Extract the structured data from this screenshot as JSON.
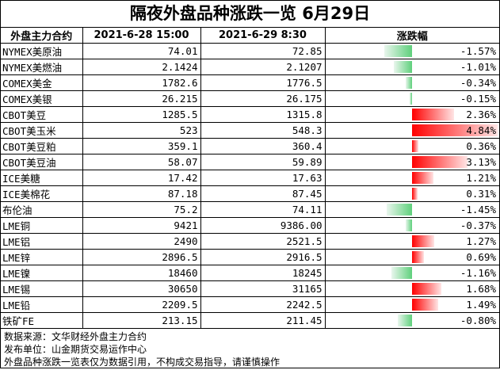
{
  "title": "隔夜外盘品种涨跌一览 6月29日",
  "headers": {
    "name": "外盘主力合约",
    "col1": "2021-6-28 15:00",
    "col2": "2021-6-29 8:30",
    "change": "涨跌幅"
  },
  "colors": {
    "up": "#ff0000",
    "down": "#5fd07c"
  },
  "rows": [
    {
      "name": "NYMEX美原油",
      "v1": "74.01",
      "v2": "72.85",
      "pct": "-1.57%",
      "val": -1.57
    },
    {
      "name": "NYMEX美燃油",
      "v1": "2.1424",
      "v2": "2.1207",
      "pct": "-1.01%",
      "val": -1.01
    },
    {
      "name": "COMEX美金",
      "v1": "1782.6",
      "v2": "1776.5",
      "pct": "-0.34%",
      "val": -0.34
    },
    {
      "name": "COMEX美银",
      "v1": "26.215",
      "v2": "26.175",
      "pct": "-0.15%",
      "val": -0.15
    },
    {
      "name": "CBOT美豆",
      "v1": "1285.5",
      "v2": "1315.8",
      "pct": "2.36%",
      "val": 2.36
    },
    {
      "name": "CBOT美玉米",
      "v1": "523",
      "v2": "548.3",
      "pct": "4.84%",
      "val": 4.84
    },
    {
      "name": "CBOT美豆粕",
      "v1": "359.1",
      "v2": "360.4",
      "pct": "0.36%",
      "val": 0.36
    },
    {
      "name": "CBOT美豆油",
      "v1": "58.07",
      "v2": "59.89",
      "pct": "3.13%",
      "val": 3.13
    },
    {
      "name": "ICE美糖",
      "v1": "17.42",
      "v2": "17.63",
      "pct": "1.21%",
      "val": 1.21
    },
    {
      "name": "ICE美棉花",
      "v1": "87.18",
      "v2": "87.45",
      "pct": "0.31%",
      "val": 0.31
    },
    {
      "name": "布伦油",
      "v1": "75.2",
      "v2": "74.11",
      "pct": "-1.45%",
      "val": -1.45
    },
    {
      "name": "LME铜",
      "v1": "9421",
      "v2": "9386.00",
      "pct": "-0.37%",
      "val": -0.37
    },
    {
      "name": "LME铝",
      "v1": "2490",
      "v2": "2521.5",
      "pct": "1.27%",
      "val": 1.27
    },
    {
      "name": "LME锌",
      "v1": "2896.5",
      "v2": "2916.5",
      "pct": "0.69%",
      "val": 0.69
    },
    {
      "name": "LME镍",
      "v1": "18460",
      "v2": "18245",
      "pct": "-1.16%",
      "val": -1.16
    },
    {
      "name": "LME锡",
      "v1": "30650",
      "v2": "31165",
      "pct": "1.68%",
      "val": 1.68
    },
    {
      "name": "LME铅",
      "v1": "2209.5",
      "v2": "2242.5",
      "pct": "1.49%",
      "val": 1.49
    },
    {
      "name": "铁矿FE",
      "v1": "213.15",
      "v2": "211.45",
      "pct": "-0.80%",
      "val": -0.8
    }
  ],
  "footer": [
    "数据来源：文华财经外盘主力合约",
    "发布单位：山金期货交易运作中心",
    "外盘品种涨跌一览表仅为数据引用，不构成交易指导，请谨慎操作"
  ]
}
